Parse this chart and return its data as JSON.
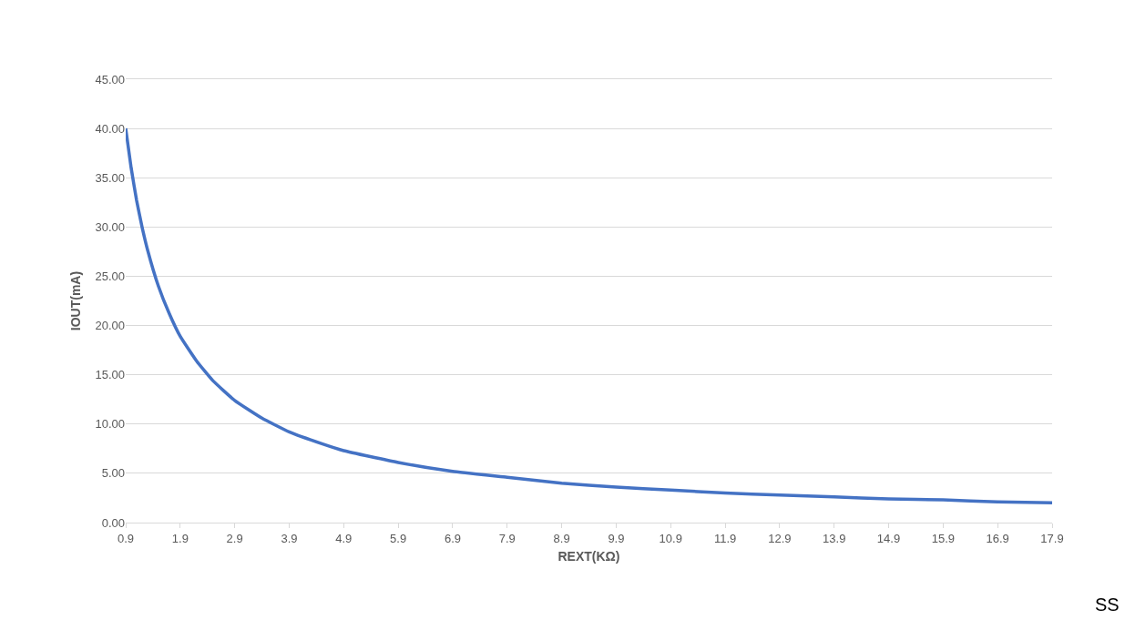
{
  "chart_data": {
    "type": "line",
    "xlabel": "REXT(KΩ)",
    "ylabel": "IOUT(mA)",
    "x": [
      0.9,
      1.0,
      1.1,
      1.2,
      1.3,
      1.5,
      1.7,
      1.9,
      2.2,
      2.5,
      2.9,
      3.4,
      3.9,
      4.5,
      4.9,
      5.9,
      6.9,
      7.9,
      8.9,
      9.9,
      10.9,
      11.9,
      12.9,
      13.9,
      14.9,
      15.9,
      16.9,
      17.9
    ],
    "series": [
      {
        "color": "#4472c4",
        "values": [
          40,
          36,
          32.7,
          30,
          27.7,
          24,
          21.2,
          18.9,
          16.4,
          14.4,
          12.4,
          10.6,
          9.2,
          8.0,
          7.3,
          6.1,
          5.2,
          4.6,
          4.0,
          3.6,
          3.3,
          3.0,
          2.8,
          2.6,
          2.4,
          2.3,
          2.1,
          2.0
        ]
      }
    ],
    "xlim": [
      0.9,
      17.9
    ],
    "xticks": [
      0.9,
      1.9,
      2.9,
      3.9,
      4.9,
      5.9,
      6.9,
      7.9,
      8.9,
      9.9,
      10.9,
      11.9,
      12.9,
      13.9,
      14.9,
      15.9,
      16.9,
      17.9
    ],
    "ylim": [
      0,
      45
    ],
    "yticks": [
      {
        "value": 0,
        "label": "0.00"
      },
      {
        "value": 5,
        "label": "5.00"
      },
      {
        "value": 10,
        "label": "10.00"
      },
      {
        "value": 15,
        "label": "15.00"
      },
      {
        "value": 20,
        "label": "20.00"
      },
      {
        "value": 25,
        "label": "25.00"
      },
      {
        "value": 30,
        "label": "30.00"
      },
      {
        "value": 35,
        "label": "35.00"
      },
      {
        "value": 40,
        "label": "40.00"
      },
      {
        "value": 45,
        "label": "45.00"
      }
    ],
    "grid": "y",
    "marker": "none",
    "line_style": "solid",
    "annotations": [
      "SS"
    ]
  }
}
